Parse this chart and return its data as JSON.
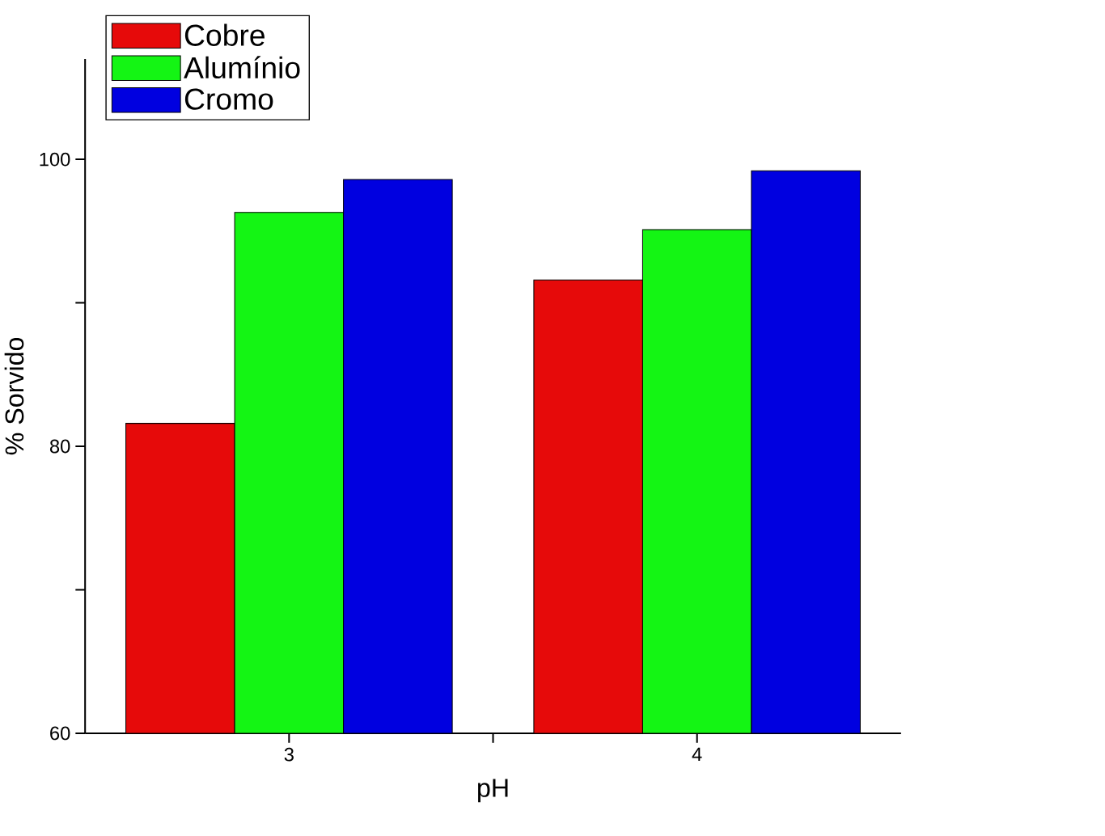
{
  "chart_data": {
    "type": "bar",
    "xlabel": "pH",
    "ylabel": "% Sorvido",
    "categories": [
      "3",
      "4"
    ],
    "series": [
      {
        "name": "Cobre",
        "color": "#e60a0a",
        "values": [
          81.6,
          91.6
        ]
      },
      {
        "name": "Alumínio",
        "color": "#14f514",
        "values": [
          96.3,
          95.1
        ]
      },
      {
        "name": "Cromo",
        "color": "#0000e0",
        "values": [
          98.6,
          99.2
        ]
      }
    ],
    "ylim": [
      60,
      107
    ],
    "yticks": [
      60,
      {
        "value": 70,
        "label": null
      },
      80,
      {
        "value": 90,
        "label": null
      },
      100
    ],
    "legend": "top left",
    "grid": false
  }
}
